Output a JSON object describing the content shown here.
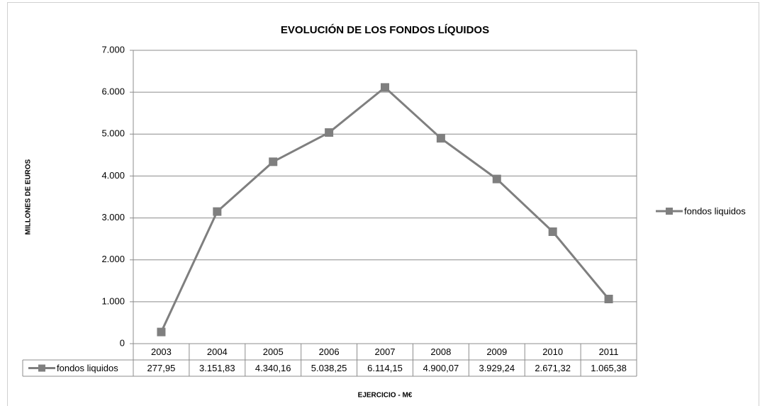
{
  "chart_data": {
    "type": "line",
    "title": "EVOLUCIÓN DE LOS FONDOS LÍQUIDOS",
    "x_label": "EJERCICIO - M€",
    "y_label": "MILLONES DE EUROS",
    "categories": [
      "2003",
      "2004",
      "2005",
      "2006",
      "2007",
      "2008",
      "2009",
      "2010",
      "2011"
    ],
    "series": [
      {
        "name": "fondos liquidos",
        "color": "#7f7f7f",
        "values": [
          277.95,
          3151.83,
          4340.16,
          5038.25,
          6114.15,
          4900.07,
          3929.24,
          2671.32,
          1065.38
        ],
        "value_labels": [
          "277,95",
          "3.151,83",
          "4.340,16",
          "5.038,25",
          "6.114,15",
          "4.900,07",
          "3.929,24",
          "2.671,32",
          "1.065,38"
        ]
      }
    ],
    "ylim": [
      0,
      7000
    ],
    "yticks": [
      0,
      {
        "value": 1000,
        "label": "1.000"
      },
      {
        "value": 2000,
        "label": "2.000"
      },
      {
        "value": 3000,
        "label": "3.000"
      },
      {
        "value": 4000,
        "label": "4.000"
      },
      {
        "value": 5000,
        "label": "5.000"
      },
      {
        "value": 6000,
        "label": "6.000"
      },
      {
        "value": 7000,
        "label": "7.000"
      }
    ],
    "grid": true,
    "legend": "right"
  }
}
